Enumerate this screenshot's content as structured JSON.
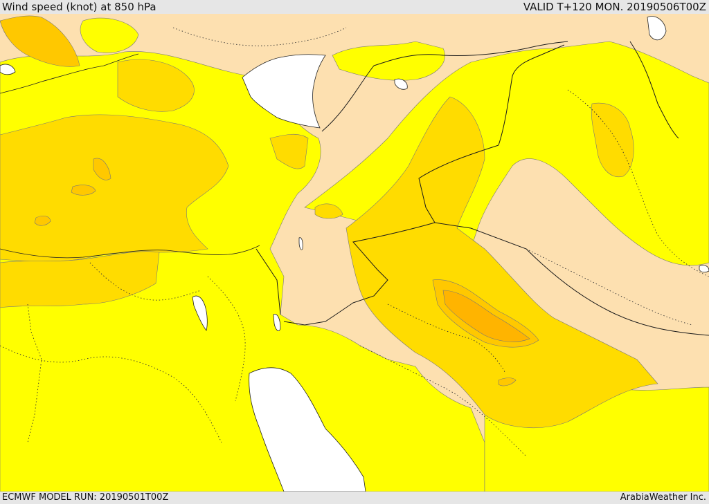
{
  "header": {
    "title": "Wind speed (knot) at 850 hPa",
    "valid": "VALID T+120 MON. 20190506T00Z"
  },
  "footer": {
    "model_run": "ECMWF MODEL RUN: 20190501T00Z",
    "credit": "ArabiaWeather Inc."
  },
  "colors": {
    "sea": "#ffffff",
    "band_low": "#fde0b0",
    "band_mid": "#ffff00",
    "band_high": "#ffdc00",
    "band_higher": "#ffc800",
    "band_peak": "#ffb400",
    "border": "#1a1a1a",
    "contour": "#555555"
  }
}
